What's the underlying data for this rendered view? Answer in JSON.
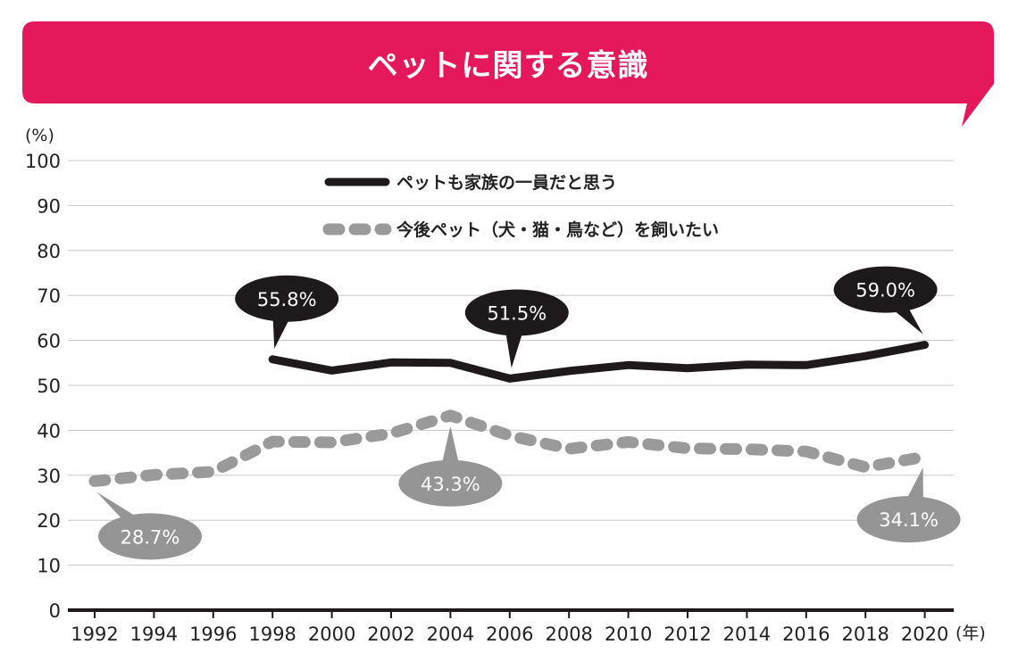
{
  "chart_data": {
    "type": "line",
    "title": "ペットに関する意識",
    "ylabel": "(%)",
    "xlabel": "(年)",
    "ylim": [
      0,
      100
    ],
    "yticks": [
      "0",
      "10",
      "20",
      "30",
      "40",
      "50",
      "60",
      "70",
      "80",
      "90",
      "100"
    ],
    "categories": [
      "1992",
      "1994",
      "1996",
      "1998",
      "2000",
      "2002",
      "2004",
      "2006",
      "2008",
      "2010",
      "2012",
      "2014",
      "2016",
      "2018",
      "2020"
    ],
    "grid": true,
    "legend_position": "top-center",
    "series": [
      {
        "name": "ペットも家族の一員だと思う",
        "style": "solid",
        "color": "#1e1a1b",
        "values": [
          null,
          null,
          null,
          55.8,
          53.3,
          55.1,
          55.0,
          51.5,
          53.2,
          54.5,
          53.8,
          54.6,
          54.5,
          56.5,
          59.0
        ]
      },
      {
        "name": "今後ペット（犬・猫・鳥など）を飼いたい",
        "style": "dashed",
        "color": "#9a9a9a",
        "values": [
          28.7,
          30.1,
          30.8,
          37.5,
          37.3,
          39.3,
          43.3,
          38.8,
          35.9,
          37.4,
          36.0,
          35.8,
          35.3,
          31.8,
          34.1
        ]
      }
    ],
    "annotations": [
      {
        "series": 0,
        "year": "1998",
        "label": "55.8%"
      },
      {
        "series": 0,
        "year": "2006",
        "label": "51.5%"
      },
      {
        "series": 0,
        "year": "2020",
        "label": "59.0%"
      },
      {
        "series": 1,
        "year": "1992",
        "label": "28.7%"
      },
      {
        "series": 1,
        "year": "2004",
        "label": "43.3%"
      },
      {
        "series": 1,
        "year": "2020",
        "label": "34.1%"
      }
    ]
  },
  "colors": {
    "banner": "#e6185c",
    "grid": "#c8c8c8",
    "axis": "#1e1a1b"
  }
}
